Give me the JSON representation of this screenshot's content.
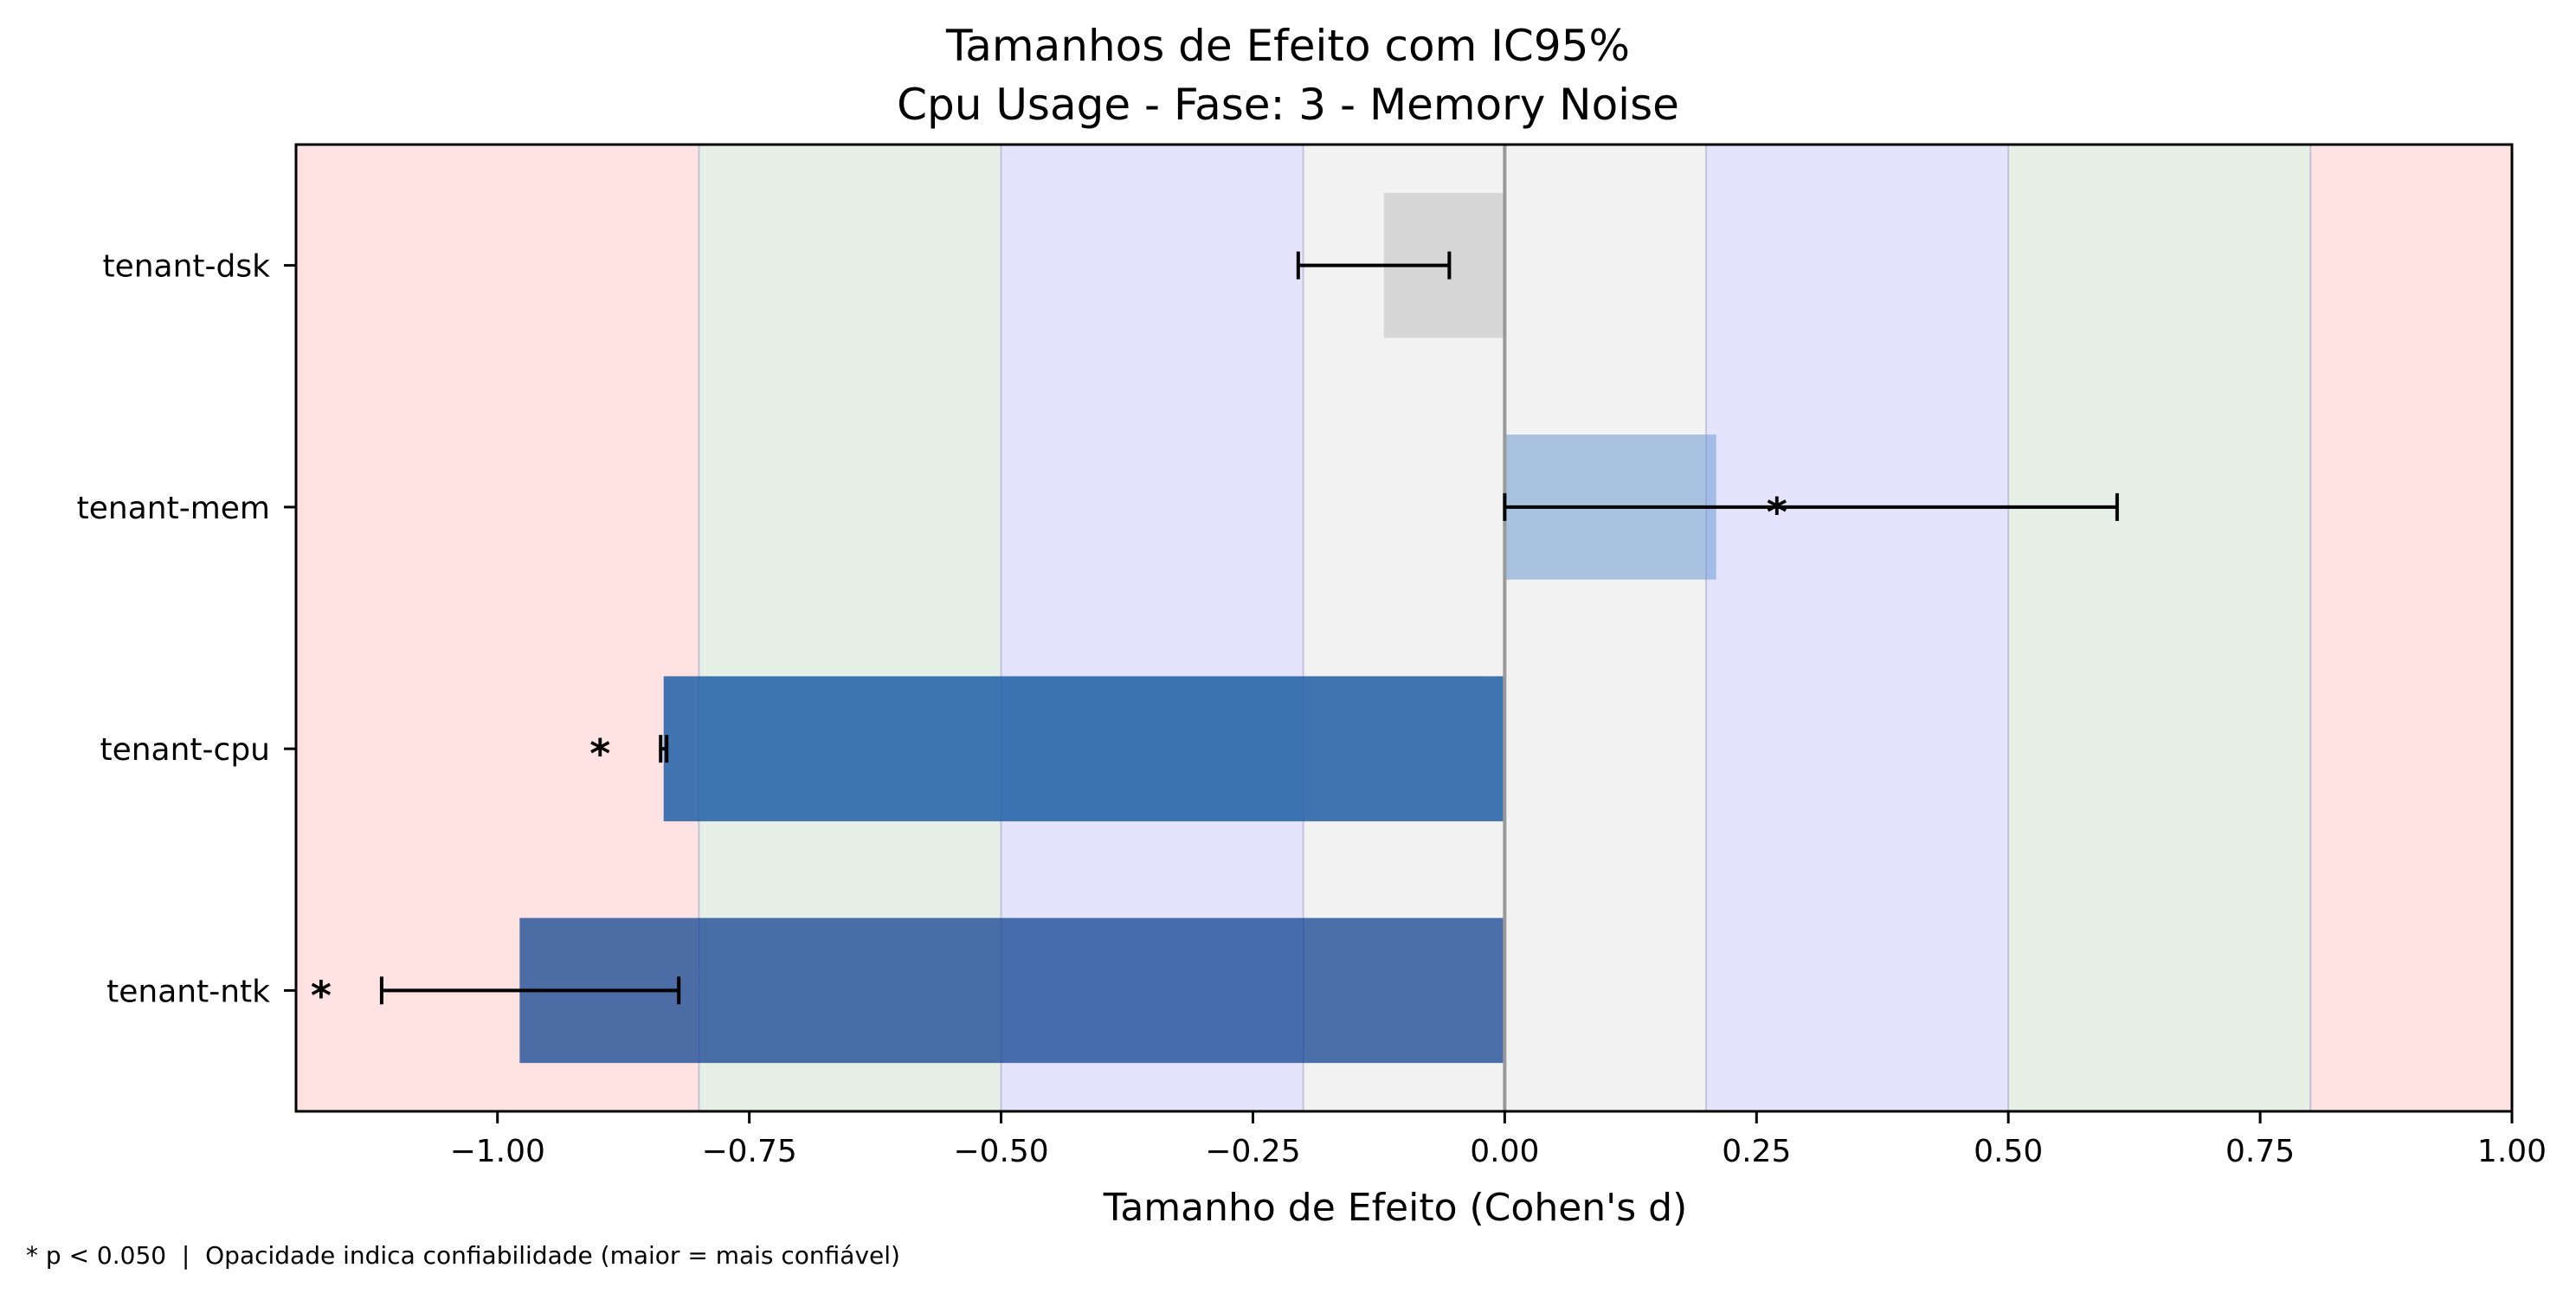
{
  "chart_data": {
    "type": "bar",
    "orientation": "horizontal",
    "title": "Tamanhos de Efeito com IC95%",
    "subtitle": "Cpu Usage - Fase: 3 - Memory Noise",
    "xlabel": "Tamanho de Efeito (Cohen's d)",
    "ylabel": "",
    "xlim": [
      -1.2,
      1.0
    ],
    "xticks": [
      -1.0,
      -0.75,
      -0.5,
      -0.25,
      0.0,
      0.25,
      0.5,
      0.75,
      1.0
    ],
    "xtick_labels": [
      "−1.00",
      "−0.75",
      "−0.50",
      "−0.25",
      "0.00",
      "0.25",
      "0.50",
      "0.75",
      "1.00"
    ],
    "grid": false,
    "categories": [
      "tenant-dsk",
      "tenant-mem",
      "tenant-cpu",
      "tenant-ntk"
    ],
    "values": [
      -0.12,
      0.21,
      -0.835,
      -0.978
    ],
    "ci_lower": [
      -0.205,
      0.0,
      -0.838,
      -1.115
    ],
    "ci_upper": [
      -0.055,
      0.608,
      -0.832,
      -0.82
    ],
    "significant": [
      false,
      true,
      true,
      true
    ],
    "significance_marker": "*",
    "bar_colors": [
      "#cccccc",
      "#6b9bd1",
      "#1f5fa6",
      "#1f4e96"
    ],
    "bar_opacity": [
      0.75,
      0.55,
      0.85,
      0.8
    ],
    "effect_bands": [
      {
        "from": -1.2,
        "to": -0.8,
        "color": "#ffe3e3"
      },
      {
        "from": -0.8,
        "to": -0.5,
        "color": "#e6f0e6"
      },
      {
        "from": -0.5,
        "to": -0.2,
        "color": "#e4e4ff"
      },
      {
        "from": -0.2,
        "to": 0.2,
        "color": "#f2f2f2"
      },
      {
        "from": 0.2,
        "to": 0.5,
        "color": "#e4e4ff"
      },
      {
        "from": 0.5,
        "to": 0.8,
        "color": "#e6f0e6"
      },
      {
        "from": 0.8,
        "to": 1.0,
        "color": "#ffe3e3"
      }
    ],
    "footnote": "* p < 0.050  |  Opacidade indica confiabilidade (maior = mais confiável)"
  }
}
